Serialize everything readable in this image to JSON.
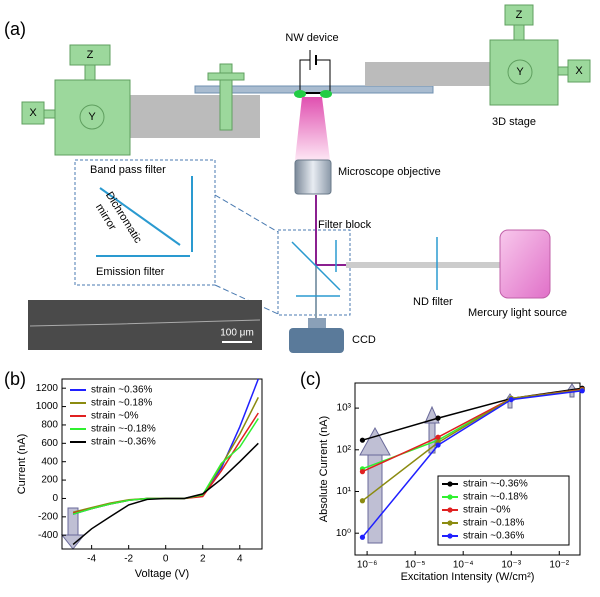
{
  "figure_labels": [
    "(a)",
    "(b)",
    "(c)"
  ],
  "diagram": {
    "nw_device": "NW device",
    "stage_left": {
      "z": "Z",
      "y": "Y",
      "x": "X"
    },
    "stage_right": {
      "z": "Z",
      "y": "Y",
      "x": "X",
      "label": "3D stage"
    },
    "microscope_objective": "Microscope objective",
    "band_pass_filter": "Band pass filter",
    "dichromatic_mirror": [
      "Dichromatic",
      "mirror"
    ],
    "emission_filter": "Emission filter",
    "filter_block": "Filter block",
    "nd_filter": "ND filter",
    "mercury_light_source": "Mercury light source",
    "ccd": "CCD",
    "scale_bar": "100 μm"
  },
  "chart_data": [
    {
      "type": "line",
      "xlabel": "Voltage (V)",
      "ylabel": "Current (nA)",
      "x": [
        -5,
        -4,
        -3,
        -2,
        -1,
        0,
        1,
        2,
        3,
        4,
        5
      ],
      "xlim": [
        -5.6,
        5.2
      ],
      "ylim": [
        -550,
        1300
      ],
      "xticks": [
        -4,
        -2,
        0,
        2,
        4
      ],
      "yticks": [
        -400,
        -200,
        0,
        200,
        400,
        600,
        800,
        1000,
        1200
      ],
      "legend": "upper left",
      "series": [
        {
          "name": "strain ~0.36%",
          "color": "#2020ff",
          "values": [
            -170,
            -110,
            -60,
            -20,
            0,
            0,
            0,
            40,
            330,
            780,
            1300
          ]
        },
        {
          "name": "strain ~0.18%",
          "color": "#8b8b10",
          "values": [
            -150,
            -100,
            -50,
            -15,
            0,
            0,
            0,
            30,
            360,
            700,
            1100
          ]
        },
        {
          "name": "strain ~0%",
          "color": "#e02020",
          "values": [
            -160,
            -110,
            -60,
            -20,
            0,
            0,
            0,
            20,
            300,
            620,
            930
          ]
        },
        {
          "name": "strain ~-0.18%",
          "color": "#30f030",
          "values": [
            -170,
            -110,
            -60,
            -20,
            0,
            0,
            0,
            40,
            380,
            560,
            870
          ]
        },
        {
          "name": "strain ~-0.36%",
          "color": "#000000",
          "values": [
            -500,
            -330,
            -200,
            -70,
            -10,
            0,
            0,
            50,
            210,
            400,
            600
          ]
        }
      ]
    },
    {
      "type": "line",
      "xlabel": "Excitation Intensity (W/cm²)",
      "ylabel": "Absolute Current (nA)",
      "xlog": true,
      "ylog": true,
      "markers": true,
      "x": [
        8e-07,
        3e-05,
        0.001,
        0.03
      ],
      "xlim": [
        5.6e-07,
        0.027
      ],
      "ylim": [
        0.3,
        4000
      ],
      "xticks": [
        {
          "value": 1e-06,
          "label": "10⁻⁶"
        },
        {
          "value": 1e-05,
          "label": "10⁻⁵"
        },
        {
          "value": 0.0001,
          "label": "10⁻⁴"
        },
        {
          "value": 0.001,
          "label": "10⁻³"
        },
        {
          "value": 0.01,
          "label": "10⁻²"
        }
      ],
      "yticks": [
        {
          "value": 1,
          "label": "10⁰"
        },
        {
          "value": 10,
          "label": "10¹"
        },
        {
          "value": 100,
          "label": "10²"
        },
        {
          "value": 1000,
          "label": "10³"
        }
      ],
      "legend": "lower right",
      "series": [
        {
          "name": "strain ~-0.36%",
          "color": "#000000",
          "values": [
            170,
            575,
            1700,
            3000
          ]
        },
        {
          "name": "strain ~-0.18%",
          "color": "#30f030",
          "values": [
            35,
            170,
            1700,
            2800
          ]
        },
        {
          "name": "strain ~0%",
          "color": "#e02020",
          "values": [
            30,
            200,
            1700,
            2800
          ]
        },
        {
          "name": "strain ~0.18%",
          "color": "#8b8b10",
          "values": [
            6,
            150,
            1700,
            2700
          ]
        },
        {
          "name": "strain ~0.36%",
          "color": "#2020ff",
          "values": [
            0.8,
            130,
            1600,
            2600
          ]
        }
      ]
    }
  ]
}
